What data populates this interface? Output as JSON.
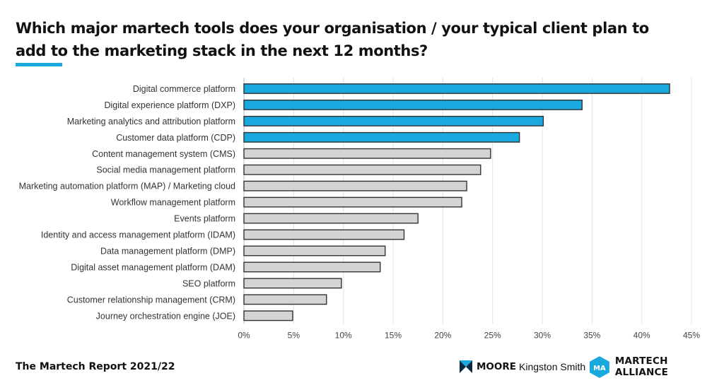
{
  "title": "Which major martech tools does your organisation / your typical client plan to add to the marketing stack in the next 12 months?",
  "footer": {
    "report_title": "The Martech Report 2021/22",
    "logo_moore_bold": "MOORE",
    "logo_moore_rest": "Kingston Smith",
    "logo_ma_mark": "MA",
    "logo_ma_text": "MARTECH ALLIANCE"
  },
  "colors": {
    "accent": "#1aa9df",
    "highlight_bar": "#1aa9df",
    "default_bar": "#d4d4d4",
    "bar_outline": "#333333",
    "grid": "#e3e3e3"
  },
  "chart_data": {
    "type": "bar",
    "orientation": "horizontal",
    "categories": [
      "Digital commerce platform",
      "Digital experience platform (DXP)",
      "Marketing analytics and attribution platform",
      "Customer data platform (CDP)",
      "Content management system (CMS)",
      "Social media management platform",
      "Marketing automation platform (MAP) / Marketing cloud",
      "Workflow management platform",
      "Events platform",
      "Identity and access management platform (IDAM)",
      "Data management platform (DMP)",
      "Digital asset management platform (DAM)",
      "SEO platform",
      "Customer relationship management (CRM)",
      "Journey orchestration engine (JOE)"
    ],
    "values": [
      42.8,
      34.0,
      30.1,
      27.7,
      24.8,
      23.8,
      22.4,
      21.9,
      17.5,
      16.1,
      14.2,
      13.7,
      9.8,
      8.3,
      4.9
    ],
    "highlighted": [
      true,
      true,
      true,
      true,
      false,
      false,
      false,
      false,
      false,
      false,
      false,
      false,
      false,
      false,
      false
    ],
    "x_ticks": [
      "0%",
      "5%",
      "10%",
      "15%",
      "20%",
      "25%",
      "30%",
      "35%",
      "40%",
      "45%"
    ],
    "xlim": [
      0,
      45
    ],
    "unit": "%",
    "grid": true
  }
}
